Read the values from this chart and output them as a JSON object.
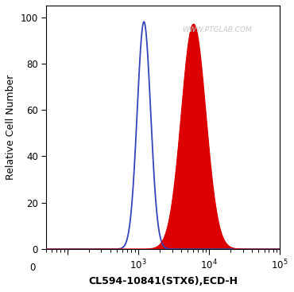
{
  "xlabel": "CL594-10841(STX6),ECD-H",
  "ylabel": "Relative Cell Number",
  "ylim": [
    0,
    105
  ],
  "yticks": [
    0,
    20,
    40,
    60,
    80,
    100
  ],
  "blue_peak_x": 1200,
  "blue_peak_y": 98,
  "blue_sigma": 0.095,
  "red_peak_x": 6000,
  "red_peak_y": 97,
  "red_sigma": 0.17,
  "blue_color": "#3344bb",
  "red_color": "#dd0000",
  "bg_color": "#ffffff",
  "plot_bg_color": "#ffffff",
  "watermark": "WWW.PTGLAB.COM",
  "watermark_color": "#c8c8c8",
  "figsize": [
    3.7,
    3.67
  ],
  "dpi": 100,
  "xlim_left": 50,
  "xlim_right": 100000
}
